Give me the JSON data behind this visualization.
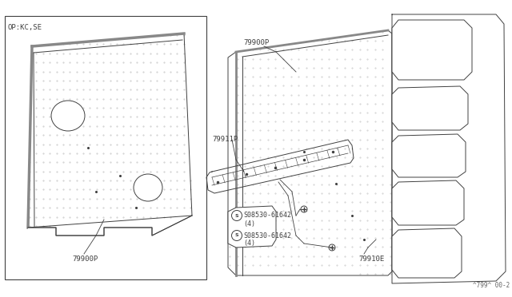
{
  "bg_color": "#ffffff",
  "line_color": "#404040",
  "dot_color": "#bbbbbb",
  "page_code": "^799^ 00-2",
  "op_label": "OP:KC,SE",
  "label_79900P": "79900P",
  "label_79911P": "79911P",
  "label_79910E": "79910E",
  "label_bolt1": "S08530-61642",
  "label_bolt1b": "(4)",
  "label_bolt2": "S08530-61642",
  "label_bolt2b": "(4)",
  "figsize": [
    6.4,
    3.72
  ],
  "dpi": 100
}
